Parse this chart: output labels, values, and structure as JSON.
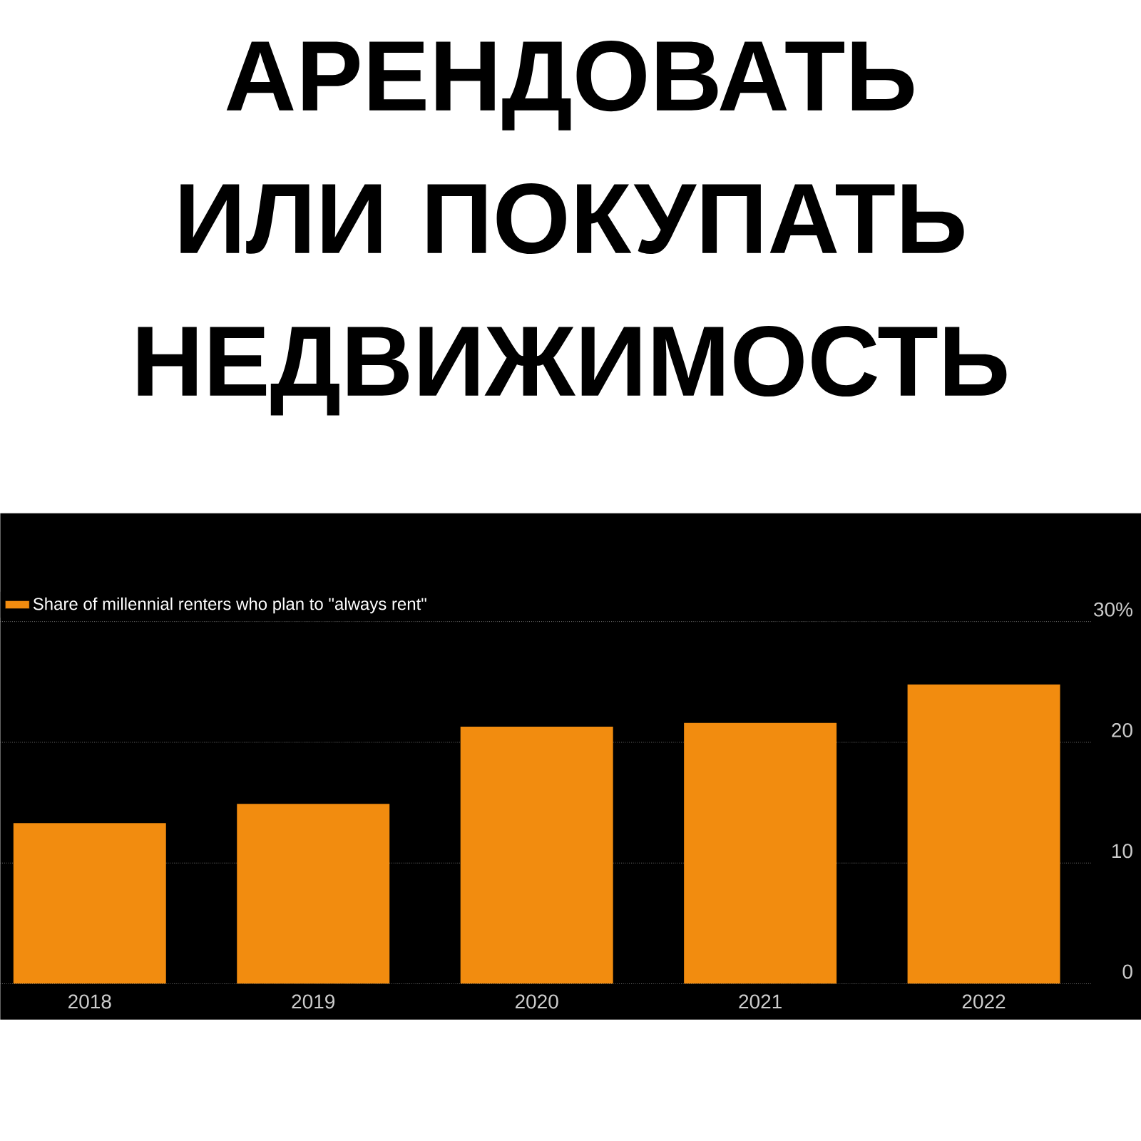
{
  "chart_data": {
    "type": "bar",
    "title": "АРЕНДОВАТЬ ИЛИ ПОКУПАТЬ НЕДВИЖИМОСТЬ",
    "categories": [
      "2018",
      "2019",
      "2020",
      "2021",
      "2022"
    ],
    "series": [
      {
        "name": "Share of millennial renters who plan to \"always rent\"",
        "color": "#f28c0f",
        "values": [
          13.3,
          14.9,
          21.3,
          21.6,
          24.8
        ]
      }
    ],
    "ylim": [
      0,
      30
    ],
    "yticks": [
      0,
      10,
      20,
      {
        "value": 30,
        "label": "30%"
      }
    ],
    "grid": "y",
    "legend": "top left"
  }
}
